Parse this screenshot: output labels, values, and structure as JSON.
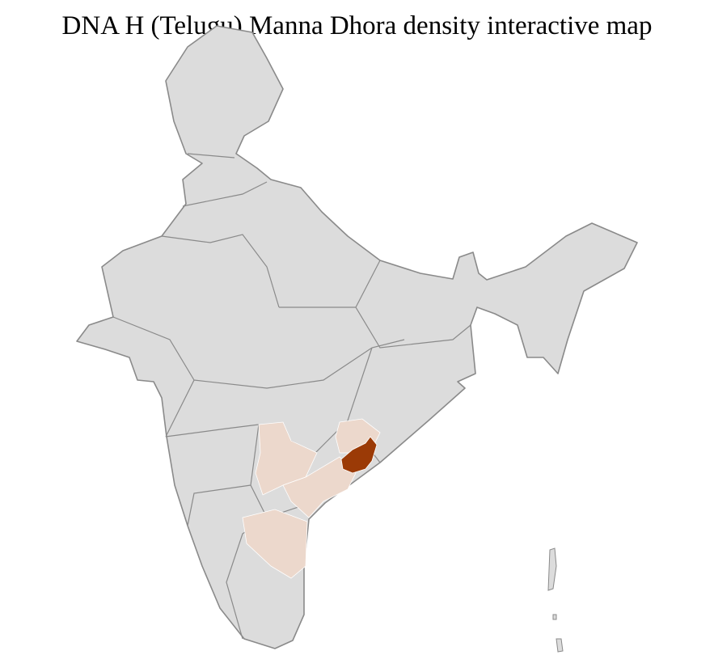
{
  "title": "DNA H (Telugu) Manna Dhora density interactive map",
  "colors": {
    "base_fill": "#dcdcdc",
    "district_border": "#ffffff",
    "state_border": "#8a8a8a",
    "low_density": "#ecd8cc",
    "high_density": "#9b3a06"
  }
}
